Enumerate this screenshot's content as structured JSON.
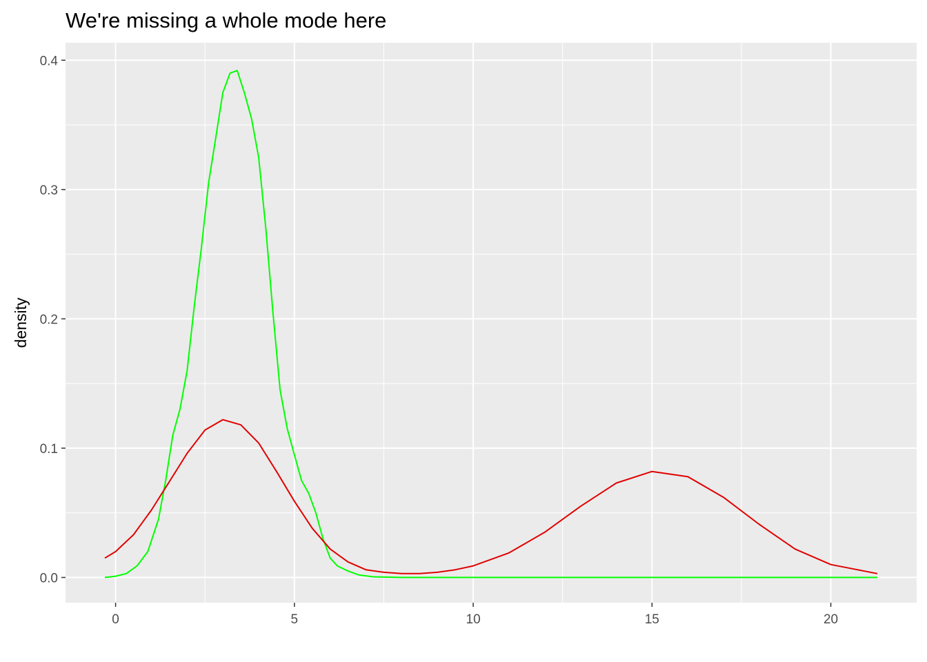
{
  "chart_data": {
    "type": "line",
    "title": "We're missing a whole mode here",
    "xlabel": "",
    "ylabel": "density",
    "xlim": [
      -1.4,
      22.4
    ],
    "ylim": [
      -0.0195,
      0.4135
    ],
    "x_ticks": [
      0,
      5,
      10,
      15,
      20
    ],
    "y_ticks": [
      0.0,
      0.1,
      0.2,
      0.3,
      0.4
    ],
    "x_tick_labels": [
      "0",
      "5",
      "10",
      "15",
      "20"
    ],
    "y_tick_labels": [
      "0.0",
      "0.1",
      "0.2",
      "0.3",
      "0.4"
    ],
    "panel_background": "#ebebeb",
    "grid": true,
    "legend": "none",
    "series": [
      {
        "color": "#00ff00",
        "x": [
          -0.3,
          0.0,
          0.3,
          0.6,
          0.9,
          1.2,
          1.4,
          1.6,
          1.8,
          2.0,
          2.2,
          2.4,
          2.6,
          2.8,
          3.0,
          3.2,
          3.4,
          3.6,
          3.8,
          4.0,
          4.2,
          4.4,
          4.6,
          4.8,
          5.0,
          5.2,
          5.4,
          5.6,
          5.8,
          6.0,
          6.2,
          6.5,
          6.8,
          7.2,
          8.0,
          10.0,
          15.0,
          20.0,
          21.3
        ],
        "y": [
          0.0,
          0.001,
          0.003,
          0.009,
          0.02,
          0.045,
          0.075,
          0.11,
          0.13,
          0.16,
          0.21,
          0.255,
          0.305,
          0.34,
          0.375,
          0.39,
          0.392,
          0.375,
          0.355,
          0.325,
          0.27,
          0.205,
          0.145,
          0.115,
          0.095,
          0.075,
          0.065,
          0.05,
          0.03,
          0.015,
          0.009,
          0.005,
          0.002,
          0.0005,
          0.0,
          0.0,
          0.0,
          0.0,
          0.0
        ]
      },
      {
        "color": "#e00000",
        "x": [
          -0.3,
          0.0,
          0.5,
          1.0,
          1.5,
          2.0,
          2.5,
          3.0,
          3.5,
          4.0,
          4.5,
          5.0,
          5.5,
          6.0,
          6.5,
          7.0,
          7.5,
          8.0,
          8.5,
          9.0,
          9.5,
          10.0,
          11.0,
          12.0,
          13.0,
          14.0,
          15.0,
          16.0,
          17.0,
          18.0,
          19.0,
          20.0,
          21.3
        ],
        "y": [
          0.015,
          0.02,
          0.033,
          0.052,
          0.074,
          0.096,
          0.114,
          0.122,
          0.118,
          0.104,
          0.082,
          0.059,
          0.038,
          0.022,
          0.012,
          0.006,
          0.004,
          0.003,
          0.003,
          0.004,
          0.006,
          0.009,
          0.019,
          0.035,
          0.055,
          0.073,
          0.082,
          0.078,
          0.062,
          0.041,
          0.022,
          0.01,
          0.003
        ]
      }
    ]
  }
}
